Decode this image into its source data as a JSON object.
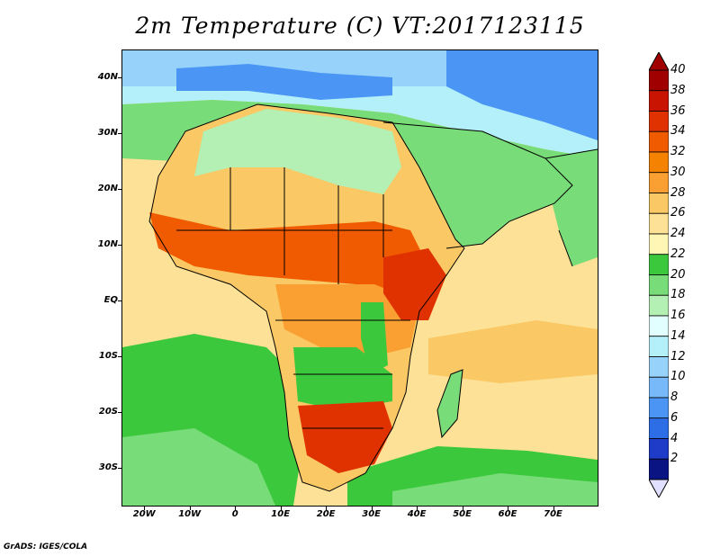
{
  "title": "2m Temperature (C)  VT:2017123115",
  "footer": "GrADS: IGES/COLA",
  "map": {
    "lon_range": [
      -25,
      80
    ],
    "lat_range": [
      -37,
      45
    ],
    "lat_labels": [
      {
        "lat": 40,
        "label": "40N"
      },
      {
        "lat": 30,
        "label": "30N"
      },
      {
        "lat": 20,
        "label": "20N"
      },
      {
        "lat": 10,
        "label": "10N"
      },
      {
        "lat": 0,
        "label": "EQ"
      },
      {
        "lat": -10,
        "label": "10S"
      },
      {
        "lat": -20,
        "label": "20S"
      },
      {
        "lat": -30,
        "label": "30S"
      }
    ],
    "lon_labels": [
      {
        "lon": -20,
        "label": "20W"
      },
      {
        "lon": -10,
        "label": "10W"
      },
      {
        "lon": 0,
        "label": "0"
      },
      {
        "lon": 10,
        "label": "10E"
      },
      {
        "lon": 20,
        "label": "20E"
      },
      {
        "lon": 30,
        "label": "30E"
      },
      {
        "lon": 40,
        "label": "40E"
      },
      {
        "lon": 50,
        "label": "50E"
      },
      {
        "lon": 60,
        "label": "60E"
      },
      {
        "lon": 70,
        "label": "70E"
      }
    ]
  },
  "colorbar": {
    "levels": [
      "40",
      "38",
      "36",
      "34",
      "32",
      "30",
      "28",
      "26",
      "24",
      "22",
      "20",
      "18",
      "16",
      "14",
      "12",
      "10",
      "8",
      "6",
      "4",
      "2"
    ],
    "colors_top_to_bottom": [
      "#a00000",
      "#c81400",
      "#e03200",
      "#f05a00",
      "#f58200",
      "#faa032",
      "#fac864",
      "#fde196",
      "#fff5b4",
      "#3cc83c",
      "#78dc78",
      "#b4f0b4",
      "#e1ffff",
      "#b4f0fa",
      "#96d2fa",
      "#78b9fa",
      "#4b96f5",
      "#2d6ee6",
      "#1e3cc8",
      "#0a1482"
    ],
    "top_arrow_color": "#a00000",
    "bottom_arrow_color": "#e1e1ff"
  }
}
